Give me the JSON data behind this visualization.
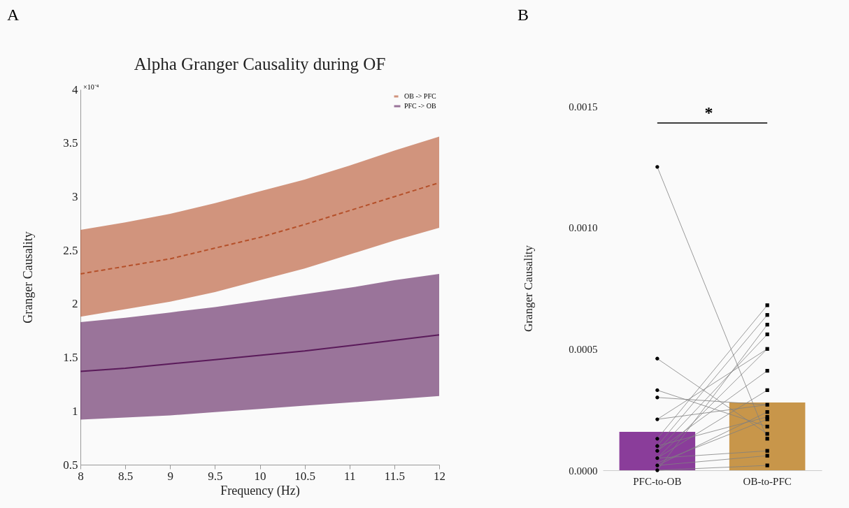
{
  "chart_data": [
    {
      "type": "line",
      "title": "Alpha Granger Causality during OF",
      "xlabel": "Frequency (Hz)",
      "ylabel": "Granger Causality",
      "annotations": [
        "A",
        "×10⁻⁴"
      ],
      "xlim": [
        8,
        12
      ],
      "xticks": [
        8,
        8.5,
        9,
        9.5,
        10,
        10.5,
        11,
        11.5,
        12
      ],
      "ylim": [
        0.5,
        4
      ],
      "yticks": [
        0.5,
        1,
        1.5,
        2,
        2.5,
        3,
        3.5,
        4
      ],
      "legend": "top right",
      "x": [
        8,
        8.5,
        9,
        9.5,
        10,
        10.5,
        11,
        11.5,
        12
      ],
      "series": [
        {
          "name": "OB -> PFC",
          "color": "#b5502a",
          "line_style": "dashed",
          "values": [
            2.28,
            2.35,
            2.42,
            2.52,
            2.62,
            2.74,
            2.87,
            3.0,
            3.13
          ],
          "lower": [
            1.88,
            1.95,
            2.02,
            2.11,
            2.22,
            2.33,
            2.46,
            2.59,
            2.71
          ],
          "upper": [
            2.69,
            2.76,
            2.84,
            2.94,
            3.05,
            3.16,
            3.29,
            3.43,
            3.56
          ]
        },
        {
          "name": "PFC -> OB",
          "color": "#5a1a5a",
          "line_style": "solid",
          "values": [
            1.37,
            1.4,
            1.44,
            1.48,
            1.52,
            1.56,
            1.61,
            1.66,
            1.71
          ],
          "lower": [
            0.92,
            0.94,
            0.96,
            0.99,
            1.02,
            1.05,
            1.08,
            1.11,
            1.14
          ],
          "upper": [
            1.83,
            1.87,
            1.92,
            1.97,
            2.03,
            2.09,
            2.15,
            2.22,
            2.28
          ]
        }
      ]
    },
    {
      "type": "bar",
      "ylabel": "Granger Causality",
      "annotations": [
        "B",
        "*"
      ],
      "categories": [
        "PFC-to-OB",
        "OB-to-PFC"
      ],
      "ylim": [
        0,
        0.0015
      ],
      "yticks": [
        {
          "value": 0,
          "label": "0.0000"
        },
        {
          "value": 0.0005,
          "label": "0.0005"
        },
        {
          "value": 0.001,
          "label": "0.0010"
        },
        {
          "value": 0.0015,
          "label": "0.0015"
        }
      ],
      "series": [
        {
          "type": "bar",
          "colors": [
            "#8a3d9a",
            "#c8964a"
          ],
          "values": [
            0.000158,
            0.000279
          ]
        },
        {
          "type": "line",
          "color": "#808080",
          "x": [
            "PFC-to-OB",
            "OB-to-PFC"
          ],
          "values": [
            0.00125,
            0.00013
          ]
        },
        {
          "type": "line",
          "color": "#808080",
          "x": [
            "PFC-to-OB",
            "OB-to-PFC"
          ],
          "values": [
            0.00046,
            0.00015
          ]
        },
        {
          "type": "line",
          "color": "#808080",
          "x": [
            "PFC-to-OB",
            "OB-to-PFC"
          ],
          "values": [
            0.00033,
            0.00018
          ]
        },
        {
          "type": "line",
          "color": "#808080",
          "x": [
            "PFC-to-OB",
            "OB-to-PFC"
          ],
          "values": [
            0.0003,
            0.00027
          ]
        },
        {
          "type": "line",
          "color": "#808080",
          "x": [
            "PFC-to-OB",
            "OB-to-PFC"
          ],
          "values": [
            0.00021,
            0.00027
          ]
        },
        {
          "type": "line",
          "color": "#808080",
          "x": [
            "PFC-to-OB",
            "OB-to-PFC"
          ],
          "values": [
            0.00021,
            0.0005
          ]
        },
        {
          "type": "line",
          "color": "#808080",
          "x": [
            "PFC-to-OB",
            "OB-to-PFC"
          ],
          "values": [
            0.00013,
            0.00068
          ]
        },
        {
          "type": "line",
          "color": "#808080",
          "x": [
            "PFC-to-OB",
            "OB-to-PFC"
          ],
          "values": [
            0.0001,
            0.00064
          ]
        },
        {
          "type": "line",
          "color": "#808080",
          "x": [
            "PFC-to-OB",
            "OB-to-PFC"
          ],
          "values": [
            0.0001,
            0.00022
          ]
        },
        {
          "type": "line",
          "color": "#808080",
          "x": [
            "PFC-to-OB",
            "OB-to-PFC"
          ],
          "values": [
            8e-05,
            0.00056
          ]
        },
        {
          "type": "line",
          "color": "#808080",
          "x": [
            "PFC-to-OB",
            "OB-to-PFC"
          ],
          "values": [
            8e-05,
            0.00041
          ]
        },
        {
          "type": "line",
          "color": "#808080",
          "x": [
            "PFC-to-OB",
            "OB-to-PFC"
          ],
          "values": [
            5e-05,
            0.0005
          ]
        },
        {
          "type": "line",
          "color": "#808080",
          "x": [
            "PFC-to-OB",
            "OB-to-PFC"
          ],
          "values": [
            5e-05,
            0.00033
          ]
        },
        {
          "type": "line",
          "color": "#808080",
          "x": [
            "PFC-to-OB",
            "OB-to-PFC"
          ],
          "values": [
            5e-05,
            8e-05
          ]
        },
        {
          "type": "line",
          "color": "#808080",
          "x": [
            "PFC-to-OB",
            "OB-to-PFC"
          ],
          "values": [
            2e-05,
            6e-05
          ]
        },
        {
          "type": "line",
          "color": "#808080",
          "x": [
            "PFC-to-OB",
            "OB-to-PFC"
          ],
          "values": [
            2e-05,
            0.00024
          ]
        },
        {
          "type": "line",
          "color": "#808080",
          "x": [
            "PFC-to-OB",
            "OB-to-PFC"
          ],
          "values": [
            0.0,
            2e-05
          ]
        },
        {
          "type": "line",
          "color": "#808080",
          "x": [
            "PFC-to-OB",
            "OB-to-PFC"
          ],
          "values": [
            0.0,
            0.0006
          ]
        },
        {
          "type": "line",
          "color": "#808080",
          "x": [
            "PFC-to-OB",
            "OB-to-PFC"
          ],
          "values": [
            3e-05,
            0.00021
          ]
        },
        {
          "type": "scatter",
          "color": "#000000",
          "marker": "circle",
          "x": [
            "PFC-to-OB",
            "PFC-to-OB",
            "PFC-to-OB",
            "PFC-to-OB",
            "PFC-to-OB",
            "PFC-to-OB",
            "PFC-to-OB",
            "PFC-to-OB",
            "PFC-to-OB",
            "PFC-to-OB",
            "PFC-to-OB"
          ],
          "values": [
            0.00125,
            0.00046,
            0.00033,
            0.0003,
            0.00021,
            0.00013,
            0.0001,
            8e-05,
            5e-05,
            2e-05,
            0.0
          ]
        },
        {
          "type": "scatter",
          "color": "#000000",
          "marker": "square",
          "x": [
            "OB-to-PFC",
            "OB-to-PFC",
            "OB-to-PFC",
            "OB-to-PFC",
            "OB-to-PFC",
            "OB-to-PFC",
            "OB-to-PFC",
            "OB-to-PFC",
            "OB-to-PFC",
            "OB-to-PFC",
            "OB-to-PFC",
            "OB-to-PFC",
            "OB-to-PFC",
            "OB-to-PFC",
            "OB-to-PFC",
            "OB-to-PFC",
            "OB-to-PFC"
          ],
          "values": [
            0.00068,
            0.00064,
            0.0006,
            0.00056,
            0.0005,
            0.00041,
            0.00033,
            0.00027,
            0.00024,
            0.00022,
            0.00021,
            0.00018,
            0.00015,
            0.00013,
            8e-05,
            6e-05,
            2e-05
          ]
        }
      ]
    }
  ]
}
